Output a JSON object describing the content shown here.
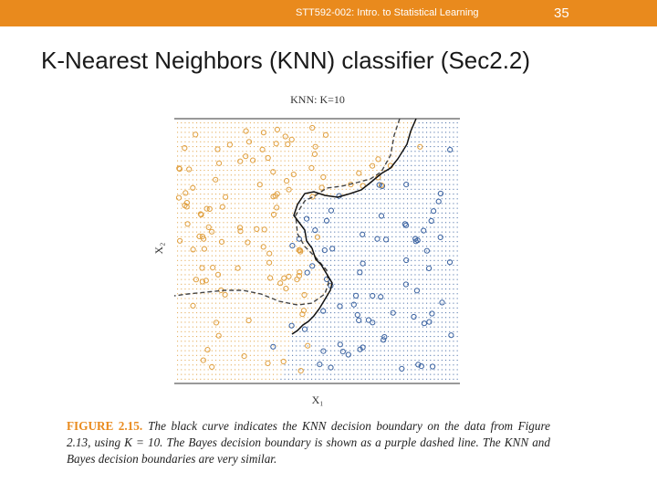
{
  "header": {
    "course": "STT592-002: Intro. to Statistical Learning",
    "page_number": "35"
  },
  "slide_title": "K-Nearest Neighbors (KNN) classifier (Sec2.2)",
  "figure": {
    "plot_title": "KNN: K=10",
    "xlabel": "X₁",
    "ylabel": "X₂",
    "colors": {
      "class_orange": "#e0a040",
      "class_blue": "#3a62a0",
      "knn_boundary": "#000000",
      "bayes_boundary": "#444444",
      "accent": "#e98a1d"
    }
  },
  "caption": {
    "label": "FIGURE 2.15.",
    "text": "The black curve indicates the KNN decision boundary on the data from Figure 2.13, using K = 10. The Bayes decision boundary is shown as a purple dashed line. The KNN and Bayes decision boundaries are very similar."
  }
}
